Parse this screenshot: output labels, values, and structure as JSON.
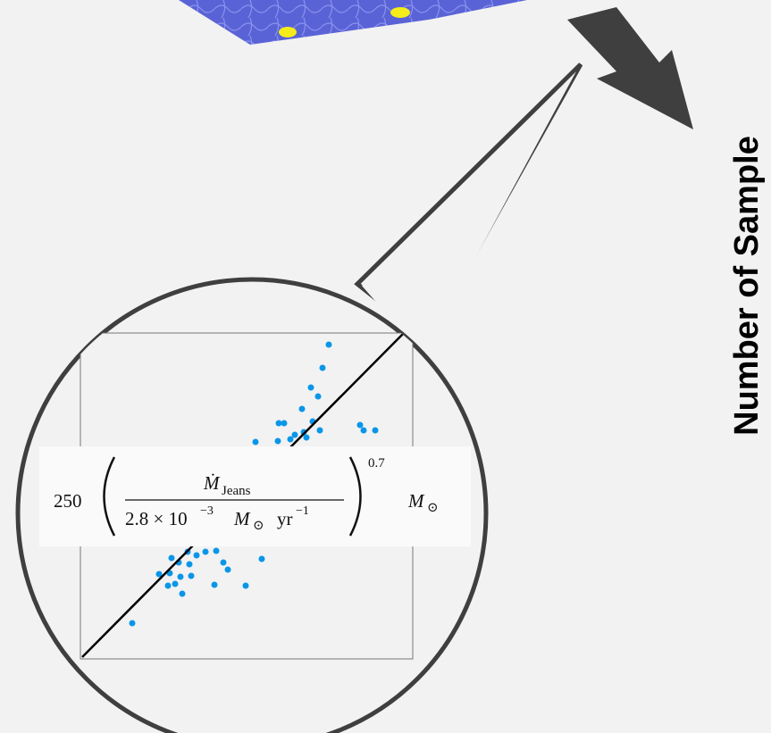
{
  "side_label": "Number of Sample",
  "formula": {
    "coefficient": "250",
    "numerator_symbol": "Ṁ",
    "numerator_subscript": "Jeans",
    "denominator_mantissa": "2.8 × 10",
    "denominator_exponent": "−3",
    "denominator_unit": "M",
    "denominator_unit_sub": "⊙",
    "denominator_rate": "yr",
    "denominator_rate_exponent": "−1",
    "power": "0.7",
    "unit": "M",
    "unit_sub": "⊙"
  }
}
